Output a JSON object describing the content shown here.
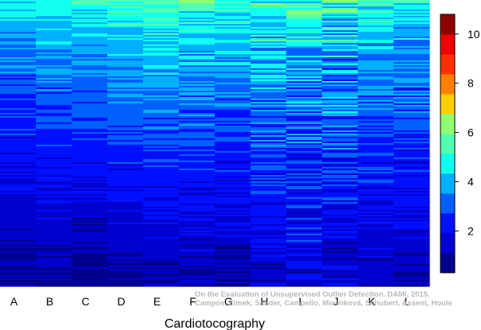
{
  "chart_data": {
    "type": "heatmap",
    "title": "",
    "xlabel": "Cardiotocography",
    "ylabel": "",
    "columns": [
      "A",
      "B",
      "C",
      "D",
      "E",
      "F",
      "G",
      "H",
      "I",
      "J",
      "K",
      "L"
    ],
    "column_profiles": [
      {
        "top": 4.6,
        "bottom": 0.8,
        "noise": 0.55
      },
      {
        "top": 4.9,
        "bottom": 0.9,
        "noise": 0.55
      },
      {
        "top": 5.2,
        "bottom": 0.7,
        "noise": 0.5
      },
      {
        "top": 5.3,
        "bottom": 0.9,
        "noise": 0.55
      },
      {
        "top": 5.8,
        "bottom": 1.0,
        "noise": 0.6
      },
      {
        "top": 5.3,
        "bottom": 1.1,
        "noise": 0.75
      },
      {
        "top": 5.2,
        "bottom": 1.0,
        "noise": 0.75
      },
      {
        "top": 5.3,
        "bottom": 1.4,
        "noise": 1.0
      },
      {
        "top": 5.2,
        "bottom": 1.5,
        "noise": 1.3
      },
      {
        "top": 5.2,
        "bottom": 1.4,
        "noise": 1.25
      },
      {
        "top": 5.0,
        "bottom": 1.2,
        "noise": 0.8
      },
      {
        "top": 4.9,
        "bottom": 1.1,
        "noise": 0.75
      }
    ],
    "row_count": 180,
    "colorbar": {
      "min": 0.3,
      "max": 10.8,
      "ticks": [
        2,
        4,
        6,
        8,
        10
      ],
      "tick_labels": [
        "2",
        "4",
        "6",
        "8",
        "10"
      ],
      "colors": [
        "#00008f",
        "#0000cf",
        "#0010ff",
        "#0060ff",
        "#00b0ff",
        "#10ffef",
        "#50ffaf",
        "#90ff6f",
        "#ffd000",
        "#ff8000",
        "#ff3000",
        "#ef0000",
        "#8f0000"
      ]
    },
    "annotation": {
      "line1": "On the Evaluation of Unsupervised Outlier Detection. DAMI, 2015.",
      "line2": "Campos, Zimek, Sander, Campello, Micenková, Schubert, Assent, Houle"
    }
  }
}
